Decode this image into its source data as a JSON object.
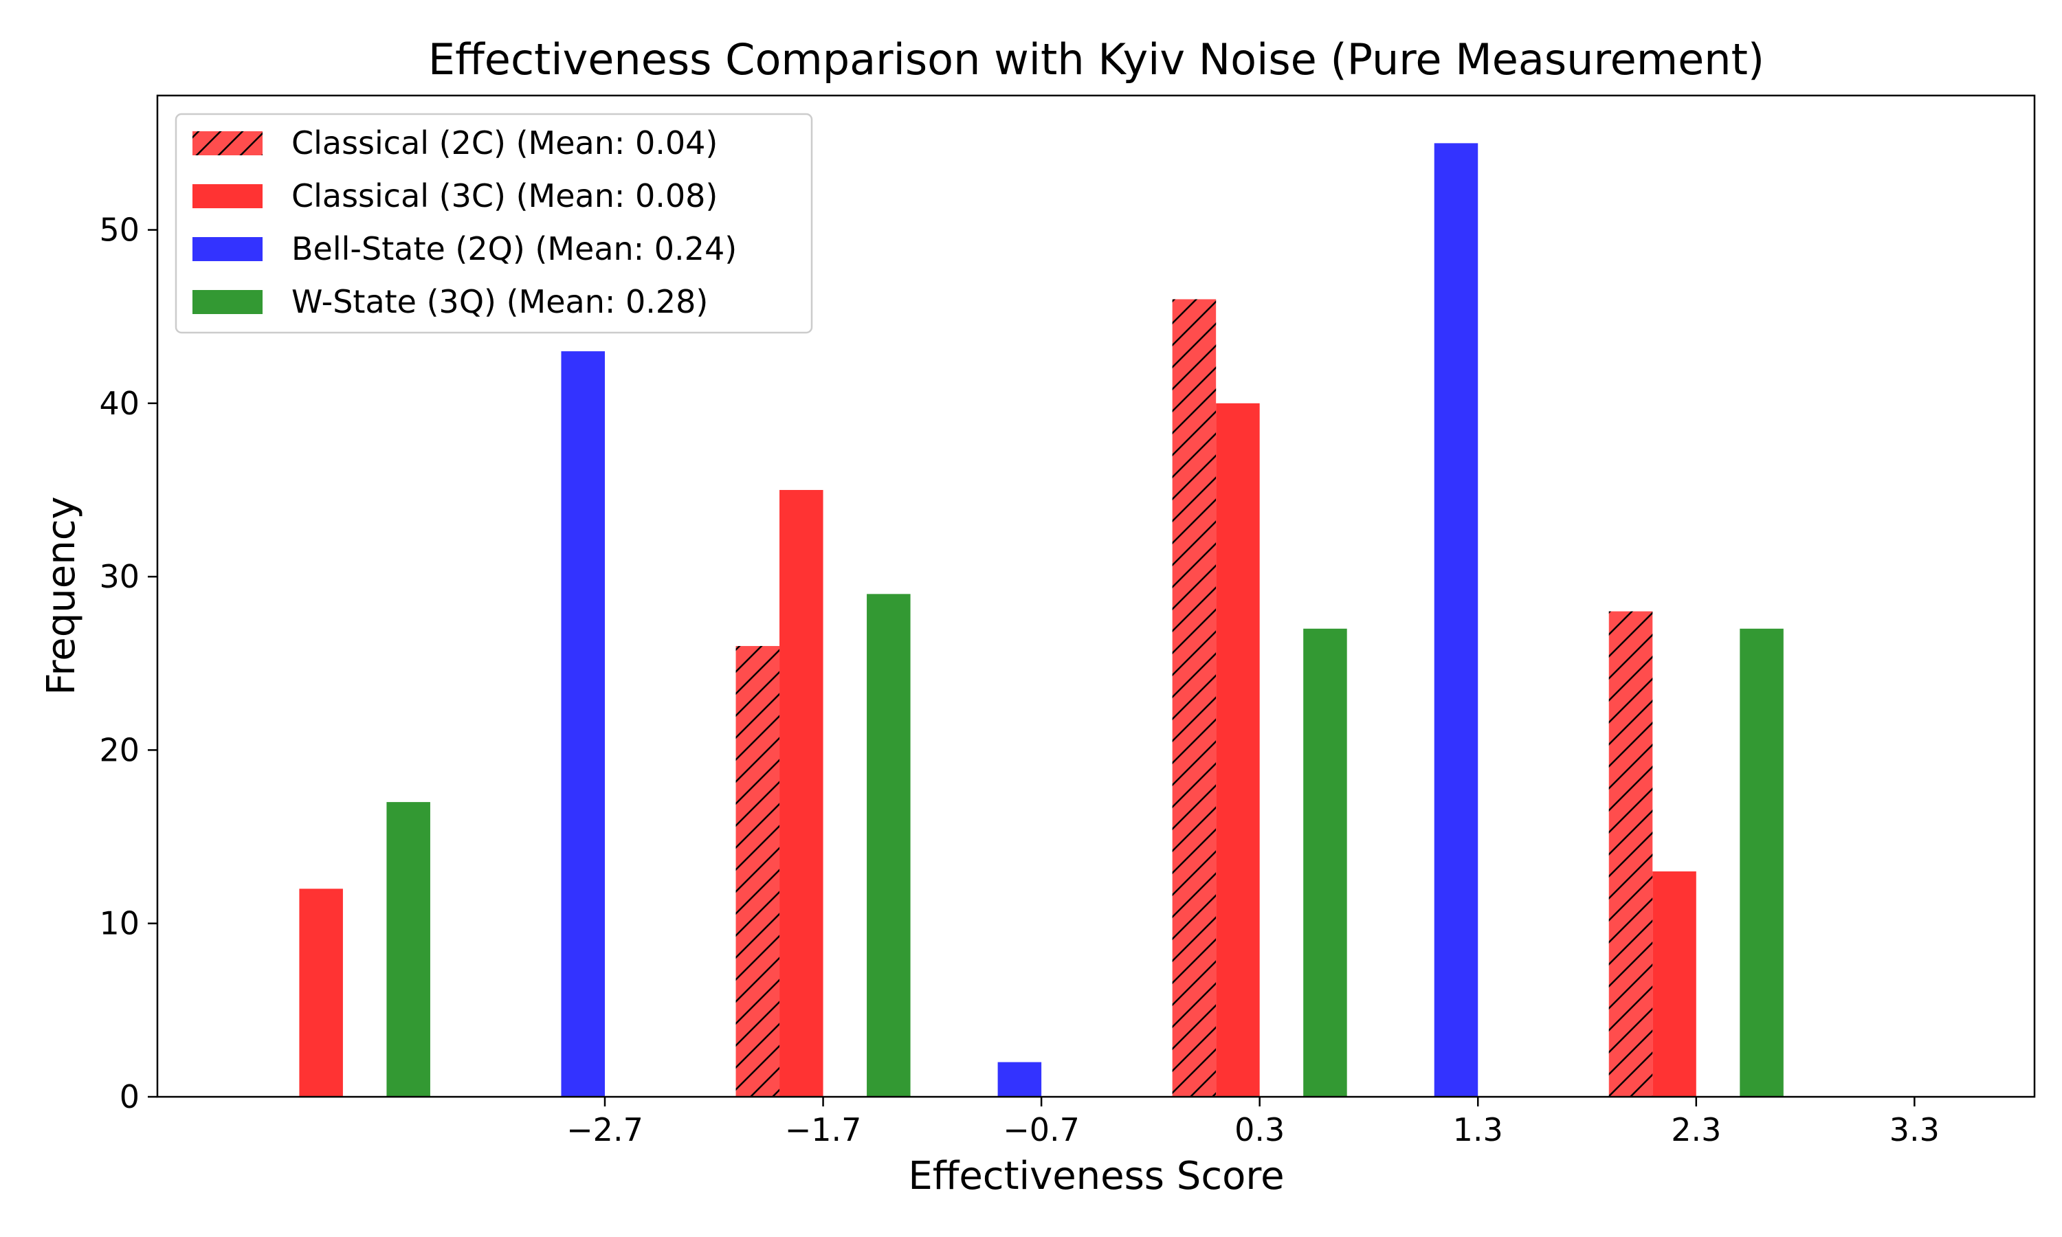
{
  "chart_data": {
    "type": "bar",
    "title": "Effectiveness Comparison with Kyiv Noise (Pure Measurement)",
    "xlabel": "Effectiveness Score",
    "ylabel": "Frequency",
    "xlim": [
      -4.75,
      3.85
    ],
    "ylim": [
      0,
      57.75
    ],
    "x_ticks": [
      -2.7,
      -1.7,
      -0.7,
      0.3,
      1.3,
      2.3,
      3.3
    ],
    "x_tick_labels": [
      "−2.7",
      "−1.7",
      "−0.7",
      "0.3",
      "1.3",
      "2.3",
      "3.3"
    ],
    "y_ticks": [
      0,
      10,
      20,
      30,
      40,
      50
    ],
    "y_tick_labels": [
      "0",
      "10",
      "20",
      "30",
      "40",
      "50"
    ],
    "bar_width": 0.2,
    "grid": false,
    "legend_position": "top-left",
    "series": [
      {
        "name": "Classical (2C) (Mean: 0.04)",
        "color": "#ff4d4d",
        "hatch": true,
        "x": [
          -2.0,
          0.0,
          2.0
        ],
        "values": [
          26,
          46,
          28
        ]
      },
      {
        "name": "Classical (3C) (Mean: 0.08)",
        "color": "#ff3333",
        "hatch": false,
        "x": [
          -4.0,
          -1.8,
          0.2,
          2.2
        ],
        "values": [
          12,
          35,
          40,
          13
        ]
      },
      {
        "name": "Bell-State (2Q) (Mean: 0.24)",
        "color": "#3333ff",
        "hatch": false,
        "x": [
          -2.8,
          -0.8,
          1.2
        ],
        "values": [
          43,
          2,
          55
        ]
      },
      {
        "name": "W-State (3Q) (Mean: 0.28)",
        "color": "#339933",
        "hatch": false,
        "x": [
          -3.6,
          -1.4,
          0.6,
          2.6
        ],
        "values": [
          17,
          29,
          27,
          27
        ]
      }
    ]
  }
}
